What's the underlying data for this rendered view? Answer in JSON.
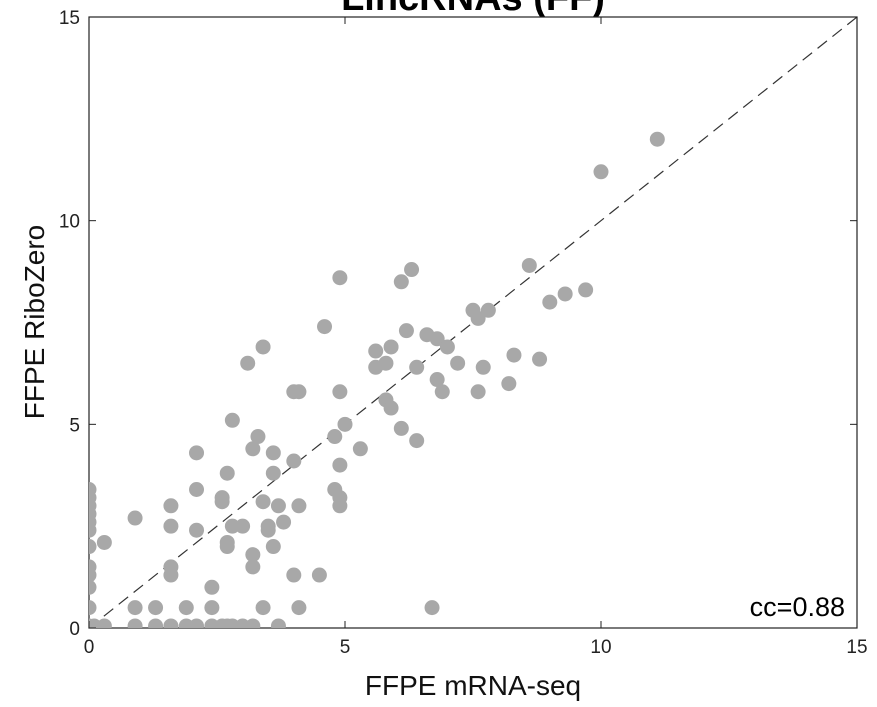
{
  "chart_data": {
    "type": "scatter",
    "title": "LincRNAs (FF)",
    "xlabel": "FFPE mRNA-seq",
    "ylabel": "FFPE RiboZero",
    "xlim": [
      0,
      15
    ],
    "ylim": [
      0,
      15
    ],
    "xticks": [
      0,
      5,
      10,
      15
    ],
    "yticks": [
      0,
      5,
      10,
      15
    ],
    "grid": false,
    "annotation": "cc=0.88",
    "reference_line": {
      "style": "dashed",
      "from": [
        0,
        0
      ],
      "to": [
        15,
        15
      ]
    },
    "marker_color": "#a8a8a8",
    "points": [
      [
        0,
        3.4
      ],
      [
        0,
        3.2
      ],
      [
        0,
        3.0
      ],
      [
        0,
        2.8
      ],
      [
        0,
        2.6
      ],
      [
        0,
        2.4
      ],
      [
        0,
        2.0
      ],
      [
        0,
        1.5
      ],
      [
        0,
        1.3
      ],
      [
        0,
        1.0
      ],
      [
        0,
        0.5
      ],
      [
        0,
        0.05
      ],
      [
        0.1,
        0.05
      ],
      [
        0.3,
        0.05
      ],
      [
        0.3,
        2.1
      ],
      [
        0.9,
        2.7
      ],
      [
        0.9,
        0.5
      ],
      [
        0.9,
        0.05
      ],
      [
        1.3,
        0.5
      ],
      [
        1.3,
        0.05
      ],
      [
        1.6,
        0.05
      ],
      [
        1.6,
        1.3
      ],
      [
        1.6,
        1.5
      ],
      [
        1.6,
        2.5
      ],
      [
        1.6,
        3.0
      ],
      [
        1.9,
        0.5
      ],
      [
        1.9,
        0.05
      ],
      [
        2.1,
        0.05
      ],
      [
        2.1,
        2.4
      ],
      [
        2.1,
        3.4
      ],
      [
        2.1,
        4.3
      ],
      [
        2.4,
        1.0
      ],
      [
        2.4,
        0.5
      ],
      [
        2.4,
        0.05
      ],
      [
        2.6,
        0.05
      ],
      [
        2.6,
        3.1
      ],
      [
        2.6,
        3.2
      ],
      [
        2.7,
        3.8
      ],
      [
        2.7,
        2.1
      ],
      [
        2.7,
        2.0
      ],
      [
        2.7,
        0.05
      ],
      [
        2.8,
        0.05
      ],
      [
        2.8,
        2.5
      ],
      [
        2.8,
        5.1
      ],
      [
        3.0,
        2.5
      ],
      [
        3.0,
        0.05
      ],
      [
        3.1,
        6.5
      ],
      [
        3.2,
        4.4
      ],
      [
        3.2,
        1.8
      ],
      [
        3.2,
        1.5
      ],
      [
        3.2,
        0.05
      ],
      [
        3.3,
        4.7
      ],
      [
        3.4,
        6.9
      ],
      [
        3.4,
        3.1
      ],
      [
        3.4,
        0.5
      ],
      [
        3.5,
        2.5
      ],
      [
        3.5,
        2.4
      ],
      [
        3.6,
        2.0
      ],
      [
        3.6,
        3.8
      ],
      [
        3.6,
        4.3
      ],
      [
        3.7,
        0.05
      ],
      [
        3.7,
        3.0
      ],
      [
        3.8,
        2.6
      ],
      [
        4.0,
        4.1
      ],
      [
        4.0,
        5.8
      ],
      [
        4.0,
        1.3
      ],
      [
        4.1,
        5.8
      ],
      [
        4.1,
        3.0
      ],
      [
        4.1,
        0.5
      ],
      [
        4.5,
        1.3
      ],
      [
        4.6,
        7.4
      ],
      [
        4.8,
        3.4
      ],
      [
        4.8,
        4.7
      ],
      [
        4.9,
        4.0
      ],
      [
        4.9,
        3.0
      ],
      [
        4.9,
        3.2
      ],
      [
        4.9,
        5.8
      ],
      [
        4.9,
        8.6
      ],
      [
        5.0,
        5.0
      ],
      [
        5.3,
        4.4
      ],
      [
        5.6,
        6.4
      ],
      [
        5.6,
        6.8
      ],
      [
        5.8,
        6.5
      ],
      [
        5.8,
        5.6
      ],
      [
        5.9,
        5.4
      ],
      [
        5.9,
        6.9
      ],
      [
        6.1,
        4.9
      ],
      [
        6.1,
        8.5
      ],
      [
        6.2,
        7.3
      ],
      [
        6.3,
        8.8
      ],
      [
        6.4,
        6.4
      ],
      [
        6.4,
        4.6
      ],
      [
        6.6,
        7.2
      ],
      [
        6.7,
        0.5
      ],
      [
        6.8,
        7.1
      ],
      [
        6.8,
        6.1
      ],
      [
        6.9,
        5.8
      ],
      [
        7.0,
        6.9
      ],
      [
        7.2,
        6.5
      ],
      [
        7.5,
        7.8
      ],
      [
        7.6,
        7.6
      ],
      [
        7.6,
        5.8
      ],
      [
        7.7,
        6.4
      ],
      [
        7.8,
        7.8
      ],
      [
        8.2,
        6.0
      ],
      [
        8.3,
        6.7
      ],
      [
        8.6,
        8.9
      ],
      [
        8.8,
        6.6
      ],
      [
        9.0,
        8.0
      ],
      [
        9.3,
        8.2
      ],
      [
        9.7,
        8.3
      ],
      [
        10.0,
        11.2
      ],
      [
        11.1,
        12.0
      ]
    ]
  }
}
